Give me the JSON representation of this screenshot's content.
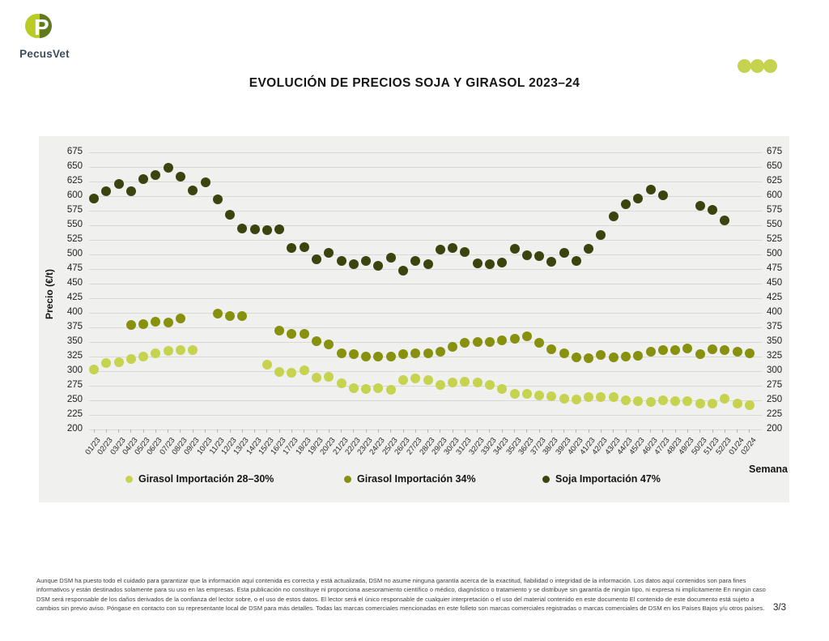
{
  "header": {
    "brand": "PecusVet",
    "brand_lime": "#b9cc26",
    "brand_green": "#5f7a1f",
    "menu_dots_color": "#c5d34f"
  },
  "title": "EVOLUCIÓN DE PRECIOS SOJA Y GIRASOL 2023–24",
  "chart_data": {
    "type": "scatter",
    "title": "EVOLUCIÓN DE PRECIOS SOJA Y GIRASOL 2023–24",
    "xlabel": "Semana",
    "ylabel": "Precio (€/t)",
    "ylim": [
      200,
      675
    ],
    "ytick_step": 25,
    "grid": true,
    "legend_position": "bottom",
    "categories": [
      "01/23",
      "02/23",
      "03/23",
      "04/23",
      "05/23",
      "06/23",
      "07/23",
      "08/23",
      "09/23",
      "10/23",
      "11/23",
      "12/23",
      "13/23",
      "14/23",
      "15/23",
      "16/23",
      "17/23",
      "18/23",
      "19/23",
      "20/23",
      "21/23",
      "22/23",
      "23/23",
      "24/23",
      "25/23",
      "26/23",
      "27/23",
      "28/23",
      "29/23",
      "30/23",
      "31/23",
      "32/23",
      "33/23",
      "34/23",
      "35/23",
      "36/23",
      "37/23",
      "38/23",
      "39/23",
      "40/23",
      "41/23",
      "42/23",
      "43/23",
      "44/23",
      "45/23",
      "46/23",
      "47/23",
      "48/23",
      "49/23",
      "50/23",
      "51/23",
      "52/23",
      "01/24",
      "02/24"
    ],
    "series": [
      {
        "name": "Girasol Importación 28–30%",
        "color": "#c5d34f",
        "values": [
          303,
          314,
          315,
          321,
          325,
          330,
          335,
          336,
          336,
          null,
          null,
          null,
          null,
          null,
          311,
          298,
          297,
          301,
          289,
          290,
          279,
          271,
          270,
          271,
          268,
          285,
          288,
          285,
          277,
          281,
          282,
          280,
          276,
          270,
          261,
          261,
          258,
          257,
          253,
          252,
          256,
          256,
          255,
          250,
          249,
          247,
          250,
          248,
          249,
          244,
          244,
          253,
          244,
          242
        ]
      },
      {
        "name": "Girasol Importación 34%",
        "color": "#87910e",
        "values": [
          null,
          null,
          null,
          379,
          380,
          385,
          384,
          390,
          null,
          null,
          398,
          395,
          395,
          null,
          null,
          370,
          364,
          364,
          352,
          346,
          331,
          329,
          325,
          325,
          325,
          329,
          330,
          330,
          333,
          341,
          349,
          350,
          350,
          353,
          355,
          360,
          349,
          337,
          330,
          324,
          322,
          328,
          324,
          325,
          326,
          333,
          336,
          336,
          339,
          329,
          338,
          336,
          334,
          331
        ]
      },
      {
        "name": "Soja Importación 47%",
        "color": "#3b430f",
        "values": [
          596,
          609,
          621,
          609,
          629,
          636,
          648,
          633,
          610,
          623,
          594,
          568,
          544,
          543,
          542,
          543,
          511,
          513,
          492,
          503,
          489,
          484,
          489,
          481,
          494,
          472,
          489,
          484,
          508,
          511,
          504,
          485,
          484,
          486,
          510,
          498,
          497,
          488,
          503,
          489,
          510,
          534,
          565,
          586,
          596,
          611,
          602,
          null,
          null,
          584,
          577,
          558,
          null,
          null
        ]
      }
    ]
  },
  "footer": {
    "disclaimer": "Aunque DSM ha puesto todo el cuidado para garantizar que la información aquí contenida es correcta y está actualizada, DSM no asume ninguna garantía acerca de la exactitud, fiabilidad o integridad de la información. Los datos aquí contenidos son para fines informativos y están destinados solamente para su uso en las empresas. Esta publicación no constituye ni proporciona asesoramiento científico o médico, diagnóstico o tratamiento y se distribuye sin garantía de ningún tipo, ni expresa ni implícitamente En ningún caso DSM será responsable de los daños derivados de la confianza del lector sobre, o el uso de estos datos. El lector será el único responsable de cualquier interpretación o el uso del material contenido en este documento El contenido de este documento está sujeto a cambios sin previo aviso. Póngase en contacto con su representante local de DSM para más detalles. Todas las marcas comerciales mencionadas en este folleto son marcas comerciales registradas o marcas comerciales de DSM en los Países Bajos y/u otros países.",
    "page": "3/3"
  }
}
